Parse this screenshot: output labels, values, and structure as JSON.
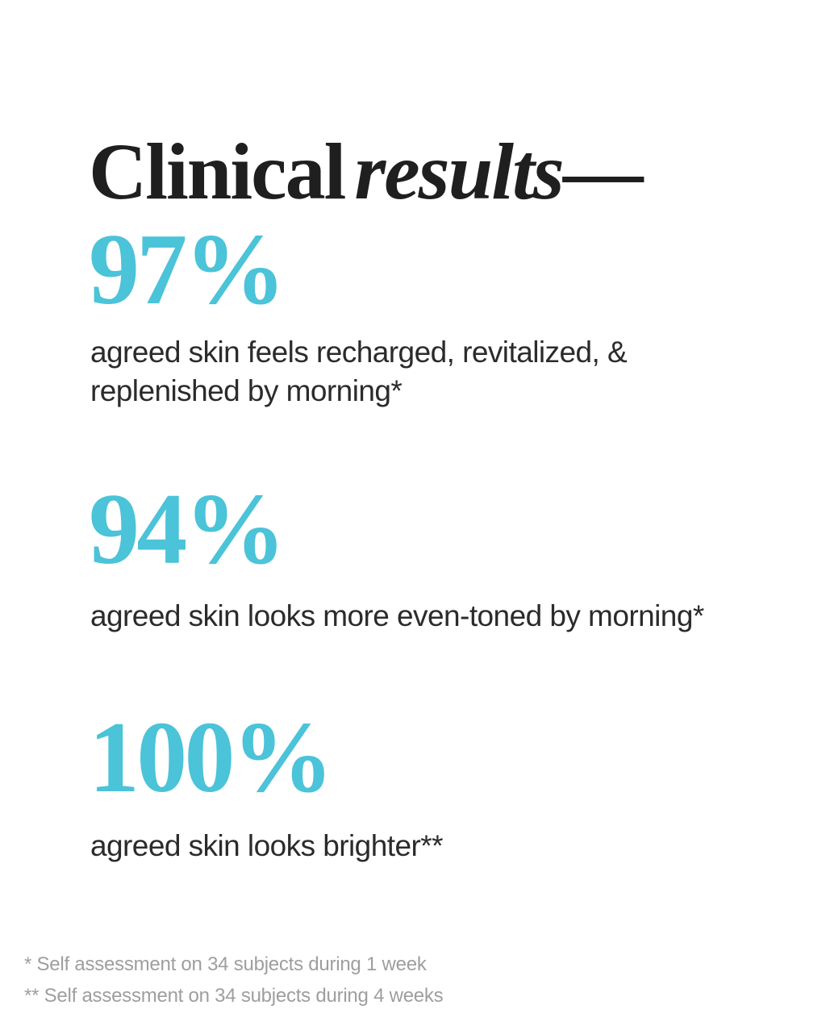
{
  "title": {
    "roman": "Clinical",
    "italic": "results",
    "dash": "—"
  },
  "stats": [
    {
      "value": "97%",
      "lines": [
        "agreed skin feels recharged, revitalized, &",
        "replenished by morning*"
      ]
    },
    {
      "value": "94%",
      "lines": [
        "agreed skin looks more even-toned by morning*"
      ]
    },
    {
      "value": "100%",
      "lines": [
        "agreed skin looks brighter**"
      ]
    }
  ],
  "footnotes": [
    "* Self assessment on 34 subjects during 1 week",
    "** Self assessment on 34 subjects during 4 weeks"
  ],
  "colors": {
    "accent_teal": "#4bc3d8",
    "heading_black": "#1f1f20",
    "body_text": "#2b2b2b",
    "footnote_gray": "#9e9e9e",
    "background": "#ffffff"
  }
}
